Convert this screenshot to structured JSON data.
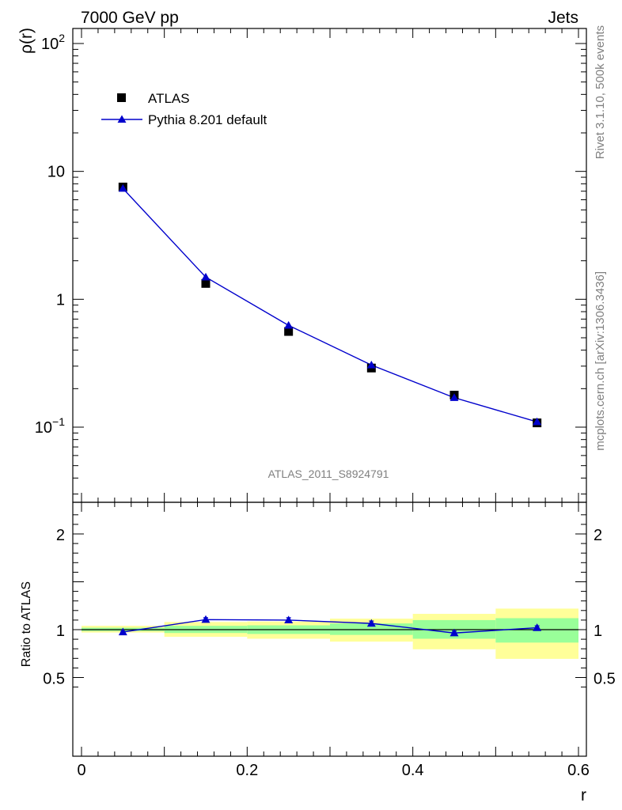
{
  "header": {
    "left": "7000 GeV pp",
    "right": "Jets"
  },
  "side": {
    "upper": "Rivet 3.1.10,  500k events",
    "lower": "mcplots.cern.ch [arXiv:1306.3436]"
  },
  "analysis_label": "ATLAS_2011_S8924791",
  "colors": {
    "data": "#000000",
    "mc": "#0000cc",
    "band_inner": "#99ff99",
    "band_outer": "#ffff99"
  },
  "chart_data": [
    {
      "type": "scatter",
      "ylabel": "ρ(r)",
      "yscale": "log",
      "ylim": [
        0.03,
        130
      ],
      "xlim": [
        0,
        0.6
      ],
      "yticks": [
        {
          "v": 0.1,
          "base": "10",
          "exp": "−1"
        },
        {
          "v": 1,
          "base": "1",
          "exp": ""
        },
        {
          "v": 10,
          "base": "10",
          "exp": ""
        },
        {
          "v": 100,
          "base": "10",
          "exp": "2"
        }
      ],
      "legend": {
        "position": "top-left"
      },
      "series": [
        {
          "name": "ATLAS",
          "marker": "square",
          "x": [
            0.05,
            0.15,
            0.25,
            0.35,
            0.45,
            0.55
          ],
          "y": [
            7.55,
            1.33,
            0.56,
            0.29,
            0.178,
            0.108
          ]
        },
        {
          "name": "Pythia 8.201 default",
          "marker": "triangle",
          "line": true,
          "x": [
            0.05,
            0.15,
            0.25,
            0.35,
            0.45,
            0.55
          ],
          "y": [
            7.35,
            1.49,
            0.625,
            0.306,
            0.17,
            0.11
          ]
        }
      ]
    },
    {
      "type": "scatter",
      "ylabel": "Ratio to ATLAS",
      "xlabel": "r",
      "ylim": [
        0.35,
        2.25
      ],
      "xlim": [
        0,
        0.6
      ],
      "xticks": [
        "0",
        "0.2",
        "0.4",
        "0.6"
      ],
      "yticks": [
        {
          "v": 0.5,
          "label": "0.5"
        },
        {
          "v": 1,
          "label": "1"
        },
        {
          "v": 2,
          "label": "2"
        }
      ],
      "bands": [
        {
          "x0": 0.0,
          "x1": 0.1,
          "inner": [
            0.985,
            1.02
          ],
          "outer": [
            0.97,
            1.04
          ]
        },
        {
          "x0": 0.1,
          "x1": 0.2,
          "inner": [
            0.965,
            1.04
          ],
          "outer": [
            0.925,
            1.08
          ]
        },
        {
          "x0": 0.2,
          "x1": 0.3,
          "inner": [
            0.955,
            1.045
          ],
          "outer": [
            0.905,
            1.085
          ]
        },
        {
          "x0": 0.3,
          "x1": 0.4,
          "inner": [
            0.945,
            1.065
          ],
          "outer": [
            0.875,
            1.115
          ]
        },
        {
          "x0": 0.4,
          "x1": 0.5,
          "inner": [
            0.905,
            1.1
          ],
          "outer": [
            0.795,
            1.165
          ]
        },
        {
          "x0": 0.5,
          "x1": 0.6,
          "inner": [
            0.865,
            1.12
          ],
          "outer": [
            0.695,
            1.22
          ]
        }
      ],
      "series": [
        {
          "name": "Pythia 8.201 default",
          "x": [
            0.05,
            0.15,
            0.25,
            0.35,
            0.45,
            0.55
          ],
          "y": [
            0.975,
            1.105,
            1.1,
            1.065,
            0.965,
            1.02
          ],
          "err": [
            0.008,
            0.02,
            0.025,
            0.025,
            0.02,
            0.02
          ]
        }
      ]
    }
  ]
}
